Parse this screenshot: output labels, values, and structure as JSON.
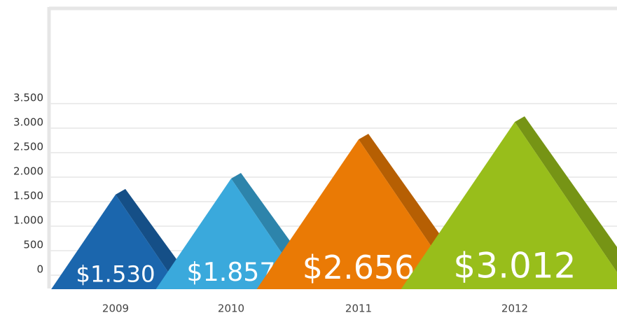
{
  "chart_data": {
    "type": "pyramid",
    "categories": [
      "2009",
      "2010",
      "2011",
      "2012"
    ],
    "values": [
      1530,
      1857,
      2656,
      3012
    ],
    "value_labels": [
      "$1.530",
      "$1.857",
      "$2.656",
      "$3.012"
    ],
    "colors": [
      "#1b66ad",
      "#3aa9dc",
      "#ea7a05",
      "#98be1b"
    ],
    "ylim": [
      0,
      3500
    ],
    "yticks": [
      0,
      500,
      {
        "value": 1000,
        "label": "1.000"
      },
      {
        "value": 1500,
        "label": "1.500"
      },
      {
        "value": 2000,
        "label": "2.000"
      },
      {
        "value": 2500,
        "label": "2.500"
      },
      {
        "value": 3000,
        "label": "3.000"
      },
      {
        "value": 3500,
        "label": "3.500"
      }
    ],
    "grid": true
  }
}
